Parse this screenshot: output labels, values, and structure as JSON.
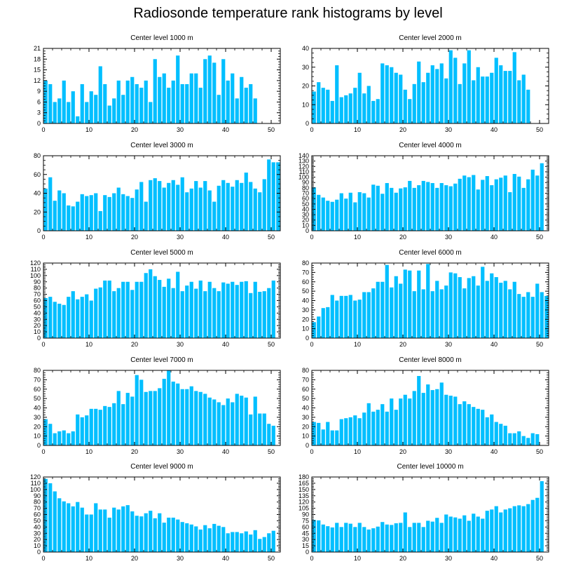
{
  "title": "Radiosonde temperature rank histograms by level",
  "colors": {
    "bar": "#00bfff",
    "axis": "#000000",
    "background": "#ffffff"
  },
  "chart_data": [
    {
      "type": "bar",
      "title": "Center level 1000 m",
      "xlabel": "",
      "ylabel": "",
      "xlim": [
        0,
        52
      ],
      "xticks": [
        0,
        10,
        20,
        30,
        40,
        50
      ],
      "ylim": [
        0,
        21
      ],
      "yticks": [
        0,
        3,
        6,
        9,
        12,
        15,
        18,
        21
      ],
      "values": [
        12,
        11,
        6,
        7,
        12,
        6,
        9,
        2,
        11,
        6,
        9,
        8,
        16,
        11,
        5,
        7,
        12,
        8,
        12,
        13,
        11,
        10,
        12,
        6,
        18,
        13,
        14,
        10,
        12,
        19,
        11,
        11,
        14,
        14,
        10,
        18,
        19,
        17,
        8,
        18,
        12,
        14,
        7,
        13,
        10,
        11,
        7
      ]
    },
    {
      "type": "bar",
      "title": "Center level 2000 m",
      "xlabel": "",
      "ylabel": "",
      "xlim": [
        0,
        52
      ],
      "xticks": [
        0,
        10,
        20,
        30,
        40,
        50
      ],
      "ylim": [
        0,
        40
      ],
      "yticks": [
        0,
        10,
        20,
        30,
        40
      ],
      "values": [
        17,
        22,
        19,
        18,
        12,
        31,
        14,
        15,
        16,
        19,
        27,
        16,
        20,
        12,
        13,
        32,
        31,
        30,
        27,
        26,
        18,
        13,
        21,
        33,
        22,
        27,
        31,
        29,
        32,
        24,
        39,
        35,
        21,
        32,
        39,
        23,
        30,
        25,
        25,
        27,
        35,
        31,
        28,
        28,
        38,
        23,
        26,
        18
      ]
    },
    {
      "type": "bar",
      "title": "Center level 3000 m",
      "xlabel": "",
      "ylabel": "",
      "xlim": [
        0,
        52
      ],
      "xticks": [
        0,
        10,
        20,
        30,
        40,
        50
      ],
      "ylim": [
        0,
        80
      ],
      "yticks": [
        0,
        20,
        40,
        60,
        80
      ],
      "values": [
        45,
        57,
        32,
        43,
        40,
        27,
        26,
        31,
        39,
        37,
        38,
        40,
        21,
        38,
        36,
        40,
        46,
        39,
        37,
        35,
        44,
        52,
        31,
        54,
        56,
        53,
        46,
        51,
        54,
        49,
        57,
        41,
        45,
        53,
        46,
        53,
        43,
        31,
        48,
        54,
        51,
        47,
        54,
        51,
        62,
        52,
        45,
        41,
        55,
        76,
        73,
        73
      ]
    },
    {
      "type": "bar",
      "title": "Center level 4000 m",
      "xlabel": "",
      "ylabel": "",
      "xlim": [
        0,
        52
      ],
      "xticks": [
        0,
        10,
        20,
        30,
        40,
        50
      ],
      "ylim": [
        0,
        140
      ],
      "yticks": [
        0,
        10,
        20,
        30,
        40,
        50,
        60,
        70,
        80,
        90,
        100,
        110,
        120,
        130,
        140
      ],
      "values": [
        81,
        67,
        62,
        56,
        54,
        58,
        70,
        60,
        71,
        53,
        72,
        70,
        62,
        86,
        84,
        69,
        89,
        80,
        71,
        79,
        81,
        93,
        80,
        85,
        93,
        91,
        89,
        80,
        89,
        85,
        83,
        88,
        97,
        103,
        100,
        104,
        77,
        95,
        102,
        85,
        96,
        99,
        103,
        72,
        106,
        101,
        80,
        96,
        114,
        103,
        126
      ]
    },
    {
      "type": "bar",
      "title": "Center level 5000 m",
      "xlabel": "",
      "ylabel": "",
      "xlim": [
        0,
        52
      ],
      "xticks": [
        0,
        10,
        20,
        30,
        40,
        50
      ],
      "ylim": [
        0,
        120
      ],
      "yticks": [
        0,
        10,
        20,
        30,
        40,
        50,
        60,
        70,
        80,
        90,
        100,
        110,
        120
      ],
      "values": [
        64,
        66,
        58,
        55,
        53,
        66,
        75,
        62,
        66,
        70,
        60,
        79,
        81,
        92,
        92,
        75,
        80,
        90,
        90,
        77,
        90,
        90,
        104,
        110,
        99,
        93,
        82,
        95,
        80,
        106,
        75,
        84,
        90,
        79,
        92,
        75,
        90,
        80,
        75,
        89,
        87,
        90,
        85,
        90,
        91,
        72,
        90,
        74,
        75,
        80,
        92
      ]
    },
    {
      "type": "bar",
      "title": "Center level 6000 m",
      "xlabel": "",
      "ylabel": "",
      "xlim": [
        0,
        52
      ],
      "xticks": [
        0,
        10,
        20,
        30,
        40,
        50
      ],
      "ylim": [
        0,
        80
      ],
      "yticks": [
        0,
        10,
        20,
        30,
        40,
        50,
        60,
        70,
        80
      ],
      "values": [
        17,
        23,
        32,
        33,
        46,
        40,
        45,
        45,
        46,
        40,
        41,
        49,
        49,
        53,
        60,
        60,
        78,
        54,
        66,
        58,
        73,
        72,
        50,
        72,
        52,
        79,
        50,
        61,
        52,
        56,
        70,
        69,
        65,
        53,
        64,
        66,
        56,
        76,
        61,
        69,
        65,
        59,
        61,
        52,
        60,
        47,
        44,
        49,
        44,
        58,
        49,
        45
      ]
    },
    {
      "type": "bar",
      "title": "Center level 7000 m",
      "xlabel": "",
      "ylabel": "",
      "xlim": [
        0,
        52
      ],
      "xticks": [
        0,
        10,
        20,
        30,
        40,
        50
      ],
      "ylim": [
        0,
        80
      ],
      "yticks": [
        0,
        10,
        20,
        30,
        40,
        50,
        60,
        70,
        80
      ],
      "values": [
        28,
        23,
        13,
        15,
        16,
        13,
        15,
        33,
        30,
        32,
        39,
        39,
        38,
        42,
        41,
        45,
        58,
        44,
        56,
        52,
        75,
        70,
        57,
        58,
        58,
        61,
        71,
        80,
        68,
        66,
        60,
        60,
        63,
        58,
        57,
        55,
        51,
        49,
        46,
        43,
        50,
        46,
        55,
        53,
        51,
        33,
        52,
        34,
        34,
        23,
        21
      ]
    },
    {
      "type": "bar",
      "title": "Center level 8000 m",
      "xlabel": "",
      "ylabel": "",
      "xlim": [
        0,
        52
      ],
      "xticks": [
        0,
        10,
        20,
        30,
        40,
        50
      ],
      "ylim": [
        0,
        80
      ],
      "yticks": [
        0,
        10,
        20,
        30,
        40,
        50,
        60,
        70,
        80
      ],
      "values": [
        25,
        24,
        17,
        25,
        16,
        16,
        28,
        29,
        30,
        32,
        29,
        35,
        45,
        36,
        38,
        44,
        36,
        50,
        38,
        50,
        54,
        50,
        58,
        74,
        56,
        65,
        59,
        60,
        67,
        54,
        53,
        52,
        44,
        47,
        44,
        41,
        39,
        38,
        30,
        33,
        25,
        23,
        21,
        13,
        13,
        15,
        10,
        8,
        13,
        12
      ]
    },
    {
      "type": "bar",
      "title": "Center level 9000 m",
      "xlabel": "",
      "ylabel": "",
      "xlim": [
        0,
        52
      ],
      "xticks": [
        0,
        10,
        20,
        30,
        40,
        50
      ],
      "ylim": [
        0,
        120
      ],
      "yticks": [
        0,
        10,
        20,
        30,
        40,
        50,
        60,
        70,
        80,
        90,
        100,
        110,
        120
      ],
      "values": [
        117,
        110,
        97,
        86,
        81,
        78,
        73,
        80,
        71,
        60,
        60,
        78,
        68,
        68,
        55,
        71,
        68,
        73,
        75,
        65,
        58,
        57,
        62,
        66,
        54,
        62,
        47,
        55,
        55,
        52,
        48,
        46,
        44,
        41,
        36,
        43,
        38,
        45,
        42,
        40,
        30,
        32,
        32,
        30,
        33,
        28,
        35,
        21,
        24,
        30,
        34
      ]
    },
    {
      "type": "bar",
      "title": "Center level 10000 m",
      "xlabel": "",
      "ylabel": "",
      "xlim": [
        0,
        52
      ],
      "xticks": [
        0,
        10,
        20,
        30,
        40,
        50
      ],
      "ylim": [
        0,
        180
      ],
      "yticks": [
        0,
        15,
        30,
        45,
        60,
        75,
        90,
        105,
        120,
        135,
        150,
        165,
        180
      ],
      "values": [
        77,
        76,
        66,
        62,
        59,
        70,
        60,
        70,
        68,
        60,
        70,
        60,
        54,
        57,
        61,
        72,
        66,
        65,
        69,
        70,
        95,
        60,
        70,
        70,
        60,
        75,
        73,
        82,
        70,
        90,
        85,
        83,
        80,
        88,
        75,
        92,
        85,
        80,
        99,
        102,
        110,
        95,
        102,
        105,
        110,
        112,
        110,
        115,
        125,
        130,
        170
      ]
    }
  ]
}
